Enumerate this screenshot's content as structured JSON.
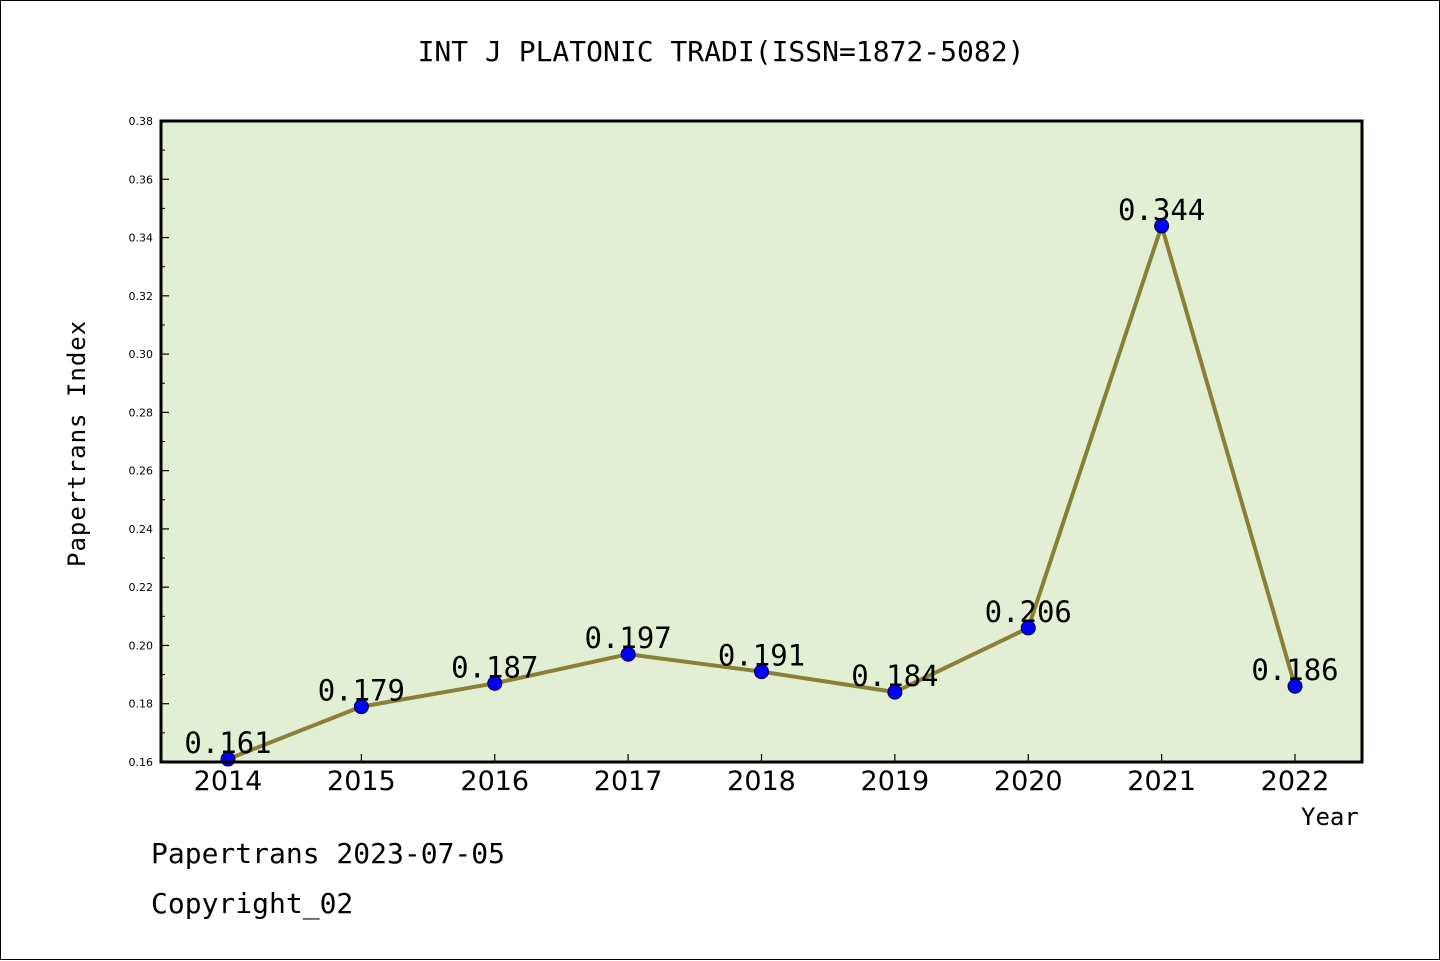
{
  "chart_data": {
    "type": "line",
    "title": "INT J PLATONIC TRADI(ISSN=1872-5082)",
    "xlabel": "Year",
    "ylabel": "Papertrans Index",
    "categories": [
      "2014",
      "2015",
      "2016",
      "2017",
      "2018",
      "2019",
      "2020",
      "2021",
      "2022"
    ],
    "values": [
      0.161,
      0.179,
      0.187,
      0.197,
      0.191,
      0.184,
      0.206,
      0.344,
      0.186
    ],
    "data_labels": [
      "0.161",
      "0.179",
      "0.187",
      "0.197",
      "0.191",
      "0.184",
      "0.206",
      "0.344",
      "0.186"
    ],
    "ylim": [
      0.16,
      0.38
    ],
    "yticks": [
      "0.16",
      "0.18",
      "0.20",
      "0.22",
      "0.24",
      "0.26",
      "0.28",
      "0.30",
      "0.32",
      "0.34",
      "0.36",
      "0.38"
    ],
    "grid": false,
    "legend": "none",
    "colors": {
      "plot_background": "#e2efd5",
      "line": "#8b7e35",
      "marker": "#0000ff"
    }
  },
  "footer": {
    "date_line": "Papertrans 2023-07-05",
    "copyright_line": "Copyright_02"
  }
}
